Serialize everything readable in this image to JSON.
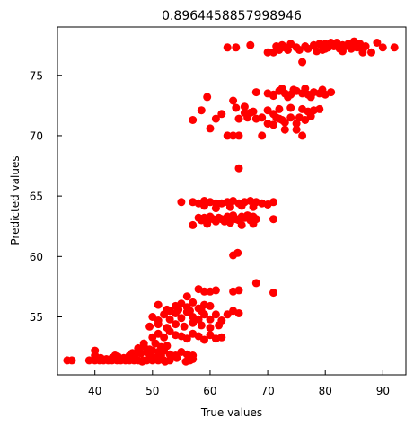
{
  "chart_data": {
    "type": "scatter",
    "title": "0.8964458857998946",
    "xlabel": "True values",
    "ylabel": "Predicted values",
    "xlim": [
      33.5,
      94
    ],
    "ylim": [
      50.2,
      79
    ],
    "xticks": [
      40,
      50,
      60,
      70,
      80,
      90
    ],
    "yticks": [
      55,
      60,
      65,
      70,
      75
    ],
    "grid": false,
    "point_color": "#ff0000",
    "points": [
      [
        35.2,
        51.4
      ],
      [
        36,
        51.4
      ],
      [
        39,
        51.4
      ],
      [
        40,
        51.4
      ],
      [
        40.8,
        51.4
      ],
      [
        41.5,
        51.4
      ],
      [
        42.3,
        51.4
      ],
      [
        43,
        51.4
      ],
      [
        43.8,
        51.4
      ],
      [
        44.5,
        51.4
      ],
      [
        45.3,
        51.4
      ],
      [
        46,
        51.4
      ],
      [
        46.8,
        51.4
      ],
      [
        47.5,
        51.4
      ],
      [
        48.3,
        51.4
      ],
      [
        49,
        51.4
      ],
      [
        50,
        51.4
      ],
      [
        51,
        51.4
      ],
      [
        52,
        51.4
      ],
      [
        53,
        51.4
      ],
      [
        56.5,
        51.4
      ],
      [
        40,
        51.8
      ],
      [
        41,
        51.6
      ],
      [
        42,
        51.5
      ],
      [
        43,
        51.6
      ],
      [
        44,
        51.7
      ],
      [
        45,
        51.6
      ],
      [
        46,
        51.8
      ],
      [
        47,
        51.9
      ],
      [
        48,
        52
      ],
      [
        49,
        52.1
      ],
      [
        50,
        52.2
      ],
      [
        51,
        52.1
      ],
      [
        52,
        52.2
      ],
      [
        53,
        51.9
      ],
      [
        54,
        51.8
      ],
      [
        55,
        52.1
      ],
      [
        56,
        51.9
      ],
      [
        57,
        51.8
      ],
      [
        40,
        52.2
      ],
      [
        43.5,
        51.8
      ],
      [
        46.5,
        52
      ],
      [
        47.5,
        52.4
      ],
      [
        48.5,
        52.6
      ],
      [
        49.5,
        52.3
      ],
      [
        50.5,
        52.8
      ],
      [
        51.5,
        52.5
      ],
      [
        52.5,
        52.6
      ],
      [
        48.5,
        52.8
      ],
      [
        49.5,
        51.9
      ],
      [
        50.5,
        51.6
      ],
      [
        51.5,
        51.8
      ],
      [
        48.2,
        51.3
      ],
      [
        50.2,
        51.5
      ],
      [
        52.2,
        51.3
      ],
      [
        54.2,
        51.6
      ],
      [
        55.8,
        51.3
      ],
      [
        57,
        51.5
      ],
      [
        50,
        53.3
      ],
      [
        51,
        53.6
      ],
      [
        52,
        53.3
      ],
      [
        53,
        53.8
      ],
      [
        54,
        53.5
      ],
      [
        55,
        53.4
      ],
      [
        56,
        53.2
      ],
      [
        57,
        53.6
      ],
      [
        58,
        53.4
      ],
      [
        59,
        53.1
      ],
      [
        60,
        53.5
      ],
      [
        61,
        53.2
      ],
      [
        62,
        53.3
      ],
      [
        50,
        55
      ],
      [
        51,
        54.7
      ],
      [
        52,
        55.2
      ],
      [
        53,
        54.8
      ],
      [
        54,
        55.3
      ],
      [
        55,
        54.9
      ],
      [
        56,
        55.4
      ],
      [
        57,
        55
      ],
      [
        58,
        54.8
      ],
      [
        59,
        55.2
      ],
      [
        60,
        54.8
      ],
      [
        61,
        55.2
      ],
      [
        62,
        54.7
      ],
      [
        49.5,
        54.2
      ],
      [
        51,
        54.4
      ],
      [
        52.5,
        54.1
      ],
      [
        54,
        54.4
      ],
      [
        55.5,
        54.2
      ],
      [
        57,
        54.5
      ],
      [
        58.5,
        54.3
      ],
      [
        60,
        54.1
      ],
      [
        61.5,
        54.3
      ],
      [
        51,
        56
      ],
      [
        52.5,
        55.6
      ],
      [
        54,
        55.9
      ],
      [
        55,
        56.1
      ],
      [
        56,
        55.8
      ],
      [
        57,
        56.2
      ],
      [
        58,
        55.7
      ],
      [
        59,
        56
      ],
      [
        60,
        55.9
      ],
      [
        53,
        55.5
      ],
      [
        54.5,
        55.6
      ],
      [
        56.5,
        55.5
      ],
      [
        58.5,
        55.5
      ],
      [
        56,
        56.7
      ],
      [
        58,
        57.3
      ],
      [
        59,
        57.1
      ],
      [
        60,
        57.1
      ],
      [
        61,
        57.2
      ],
      [
        63,
        55.2
      ],
      [
        64,
        55.5
      ],
      [
        65,
        55.3
      ],
      [
        64,
        57.1
      ],
      [
        65,
        57.2
      ],
      [
        68,
        57.8
      ],
      [
        71,
        57
      ],
      [
        64,
        60.1
      ],
      [
        64.8,
        60.3
      ],
      [
        55,
        64.5
      ],
      [
        57,
        64.5
      ],
      [
        58,
        64.4
      ],
      [
        59,
        64.6
      ],
      [
        60,
        64.5
      ],
      [
        61,
        64.4
      ],
      [
        62,
        64.4
      ],
      [
        63,
        64.5
      ],
      [
        64,
        64.6
      ],
      [
        65,
        64.4
      ],
      [
        66,
        64.5
      ],
      [
        67,
        64.6
      ],
      [
        68,
        64.5
      ],
      [
        69,
        64.4
      ],
      [
        70,
        64.3
      ],
      [
        71,
        64.5
      ],
      [
        58,
        63.2
      ],
      [
        58.5,
        63
      ],
      [
        59,
        63.2
      ],
      [
        59.5,
        62.9
      ],
      [
        60,
        63.3
      ],
      [
        60.5,
        63.1
      ],
      [
        61,
        62.9
      ],
      [
        61.5,
        63.2
      ],
      [
        62,
        63.1
      ],
      [
        62.5,
        62.9
      ],
      [
        63,
        63.3
      ],
      [
        63.5,
        63
      ],
      [
        64,
        63.4
      ],
      [
        64.5,
        63.1
      ],
      [
        65,
        63
      ],
      [
        65.5,
        63.3
      ],
      [
        66,
        63.2
      ],
      [
        66.5,
        63.4
      ],
      [
        67,
        63
      ],
      [
        67.5,
        63.3
      ],
      [
        68,
        63.1
      ],
      [
        57,
        62.6
      ],
      [
        59.5,
        62.7
      ],
      [
        63.5,
        62.8
      ],
      [
        65.5,
        62.6
      ],
      [
        67.5,
        62.7
      ],
      [
        71,
        63.1
      ],
      [
        59,
        64.2
      ],
      [
        61,
        64
      ],
      [
        63.5,
        64.1
      ],
      [
        65.5,
        64.2
      ],
      [
        67.5,
        64.1
      ],
      [
        65,
        67.3
      ],
      [
        57,
        71.3
      ],
      [
        58.5,
        72.1
      ],
      [
        59.5,
        73.2
      ],
      [
        60,
        70.6
      ],
      [
        61,
        71.4
      ],
      [
        62,
        71.8
      ],
      [
        63,
        70
      ],
      [
        64,
        70
      ],
      [
        65,
        70
      ],
      [
        64.5,
        72.3
      ],
      [
        65,
        71.4
      ],
      [
        66,
        72.4
      ],
      [
        66.5,
        71.5
      ],
      [
        67,
        71.9
      ],
      [
        68,
        71.4
      ],
      [
        69,
        70
      ],
      [
        70,
        71
      ],
      [
        71,
        71.8
      ],
      [
        72,
        71.4
      ],
      [
        73,
        70.5
      ],
      [
        74,
        71.5
      ],
      [
        75,
        71
      ],
      [
        76,
        72.2
      ],
      [
        77,
        72
      ],
      [
        64,
        72.9
      ],
      [
        66,
        71.9
      ],
      [
        67.5,
        72
      ],
      [
        68,
        73.6
      ],
      [
        69,
        71.5
      ],
      [
        70,
        72.1
      ],
      [
        71,
        70.9
      ],
      [
        72,
        72.2
      ],
      [
        73,
        71.1
      ],
      [
        74,
        72.3
      ],
      [
        75,
        70.5
      ],
      [
        76,
        70
      ],
      [
        78,
        72.1
      ],
      [
        79,
        72.2
      ],
      [
        70,
        73.5
      ],
      [
        71,
        73.4
      ],
      [
        72,
        73.7
      ],
      [
        73,
        73.5
      ],
      [
        74,
        73.4
      ],
      [
        75,
        73.7
      ],
      [
        76,
        73.5
      ],
      [
        77,
        73.4
      ],
      [
        78,
        73.6
      ],
      [
        79,
        73.5
      ],
      [
        80,
        73.4
      ],
      [
        81,
        73.6
      ],
      [
        71,
        73.3
      ],
      [
        72.5,
        73.9
      ],
      [
        73.5,
        73.2
      ],
      [
        74.5,
        73.8
      ],
      [
        76.5,
        73.9
      ],
      [
        77.5,
        73.2
      ],
      [
        79.5,
        73.8
      ],
      [
        71.5,
        71.5
      ],
      [
        72.5,
        71.3
      ],
      [
        75.5,
        71.5
      ],
      [
        76.5,
        71.3
      ],
      [
        77.5,
        71.6
      ],
      [
        63,
        77.3
      ],
      [
        64.5,
        77.3
      ],
      [
        67,
        77.5
      ],
      [
        70,
        76.9
      ],
      [
        71,
        76.9
      ],
      [
        71.5,
        77.4
      ],
      [
        72,
        77.1
      ],
      [
        72.5,
        77.5
      ],
      [
        73,
        77.3
      ],
      [
        73.5,
        77.1
      ],
      [
        74,
        77.6
      ],
      [
        75,
        77.3
      ],
      [
        75.5,
        77.1
      ],
      [
        76,
        76.1
      ],
      [
        76.5,
        77.4
      ],
      [
        77,
        77.2
      ],
      [
        78,
        77.5
      ],
      [
        79,
        77.6
      ],
      [
        79.5,
        77.1
      ],
      [
        80,
        77.6
      ],
      [
        80.5,
        77.3
      ],
      [
        81,
        77.7
      ],
      [
        81.5,
        77.4
      ],
      [
        82,
        77.6
      ],
      [
        82.5,
        77.2
      ],
      [
        83,
        77.5
      ],
      [
        83.5,
        77.4
      ],
      [
        84,
        77.6
      ],
      [
        84.5,
        77.2
      ],
      [
        85,
        77.5
      ],
      [
        85.5,
        77.3
      ],
      [
        86,
        77.6
      ],
      [
        86.5,
        77.1
      ],
      [
        87,
        77.4
      ],
      [
        88,
        76.9
      ],
      [
        89,
        77.7
      ],
      [
        90,
        77.3
      ],
      [
        92,
        77.3
      ],
      [
        78.5,
        77
      ],
      [
        80,
        77.2
      ],
      [
        82,
        77.7
      ],
      [
        83,
        77
      ],
      [
        85,
        77.8
      ],
      [
        86.5,
        76.9
      ]
    ]
  }
}
